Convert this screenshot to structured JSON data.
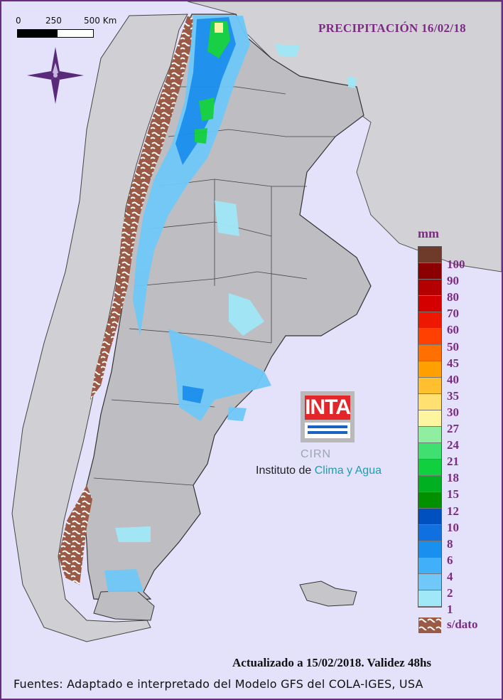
{
  "title": "PRECIPITACIÓN 16/02/18",
  "scale": {
    "ticks": [
      "0",
      "250",
      "500 Km"
    ]
  },
  "legend": {
    "unit": "mm",
    "levels": [
      "100",
      "90",
      "80",
      "70",
      "60",
      "50",
      "45",
      "40",
      "35",
      "30",
      "27",
      "24",
      "21",
      "18",
      "15",
      "12",
      "10",
      "8",
      "6",
      "4",
      "2",
      "1"
    ],
    "colors": [
      "#6e3b2a",
      "#8b0000",
      "#b40000",
      "#d40000",
      "#ee1800",
      "#ff4000",
      "#ff7000",
      "#ffa000",
      "#ffc030",
      "#ffe070",
      "#fff5a0",
      "#90eea0",
      "#40e070",
      "#10d040",
      "#00b020",
      "#009000",
      "#0050c0",
      "#1070e0",
      "#1890f0",
      "#40b0f8",
      "#70c8f8",
      "#a0e8f8"
    ],
    "nodata_label": "s/dato",
    "nodata_color": "#9b5a45"
  },
  "logo": {
    "inta": "INTA",
    "cirn": "CIRN",
    "institute_prefix": "Instituto de",
    "institute_highlight": "Clima y Agua"
  },
  "updated": "Actualizado a 15/02/2018. Validez 48hs",
  "sources": "Fuentes: Adaptado e interpretado del Modelo GFS del COLA-IGES, USA",
  "accent_color": "#7a2c80",
  "compass_icon": "compass-rose-icon"
}
